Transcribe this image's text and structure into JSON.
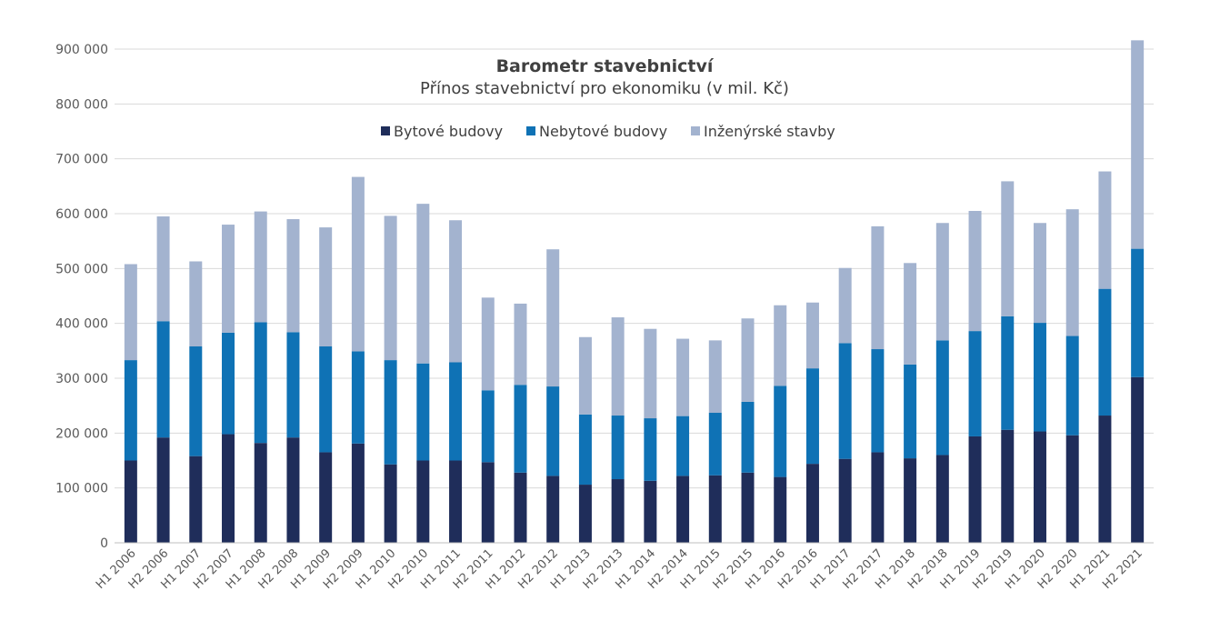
{
  "chart_data": {
    "type": "bar",
    "stacked": true,
    "title": "Barometr stavebnictví",
    "subtitle": "Přínos stavebnictví pro ekonomiku (v mil. Kč)",
    "ylim": [
      0,
      900000
    ],
    "yticks": [
      0,
      100000,
      200000,
      300000,
      400000,
      500000,
      600000,
      700000,
      800000,
      900000
    ],
    "ytick_labels": [
      "0",
      "100 000",
      "200 000",
      "300 000",
      "400 000",
      "500 000",
      "600 000",
      "700 000",
      "800 000",
      "900 000"
    ],
    "grid": true,
    "legend_position": "top-center",
    "categories": [
      "H1 2006",
      "H2 2006",
      "H1 2007",
      "H2 2007",
      "H1 2008",
      "H2 2008",
      "H1 2009",
      "H2 2009",
      "H1 2010",
      "H2 2010",
      "H1 2011",
      "H2 2011",
      "H1 2012",
      "H2 2012",
      "H1 2013",
      "H2 2013",
      "H1 2014",
      "H2 2014",
      "H1 2015",
      "H2 2015",
      "H1 2016",
      "H2 2016",
      "H1 2017",
      "H2 2017",
      "H1 2018",
      "H2 2018",
      "H1 2019",
      "H2 2019",
      "H1 2020",
      "H2 2020",
      "H1 2021",
      "H2 2021"
    ],
    "series": [
      {
        "name": "Bytové budovy",
        "color": "#1f2d5a",
        "values": [
          150000,
          192000,
          158000,
          198000,
          182000,
          192000,
          165000,
          181000,
          143000,
          150000,
          150000,
          147000,
          128000,
          122000,
          106000,
          116000,
          113000,
          122000,
          123000,
          128000,
          120000,
          144000,
          153000,
          165000,
          154000,
          160000,
          194000,
          206000,
          203000,
          196000,
          232000,
          302000
        ]
      },
      {
        "name": "Nebytové budovy",
        "color": "#0f72b5",
        "values": [
          183000,
          212000,
          200000,
          185000,
          220000,
          192000,
          193000,
          168000,
          190000,
          177000,
          179000,
          131000,
          160000,
          163000,
          128000,
          116000,
          114000,
          109000,
          114000,
          129000,
          166000,
          174000,
          211000,
          188000,
          171000,
          209000,
          192000,
          207000,
          198000,
          181000,
          231000,
          234000
        ]
      },
      {
        "name": "Inženýrské stavby",
        "color": "#a3b3cf",
        "values": [
          175000,
          191000,
          155000,
          197000,
          202000,
          206000,
          217000,
          318000,
          263000,
          291000,
          259000,
          169000,
          148000,
          250000,
          141000,
          179000,
          163000,
          141000,
          132000,
          152000,
          147000,
          120000,
          137000,
          224000,
          185000,
          214000,
          219000,
          246000,
          182000,
          231000,
          214000,
          380000
        ]
      }
    ]
  }
}
